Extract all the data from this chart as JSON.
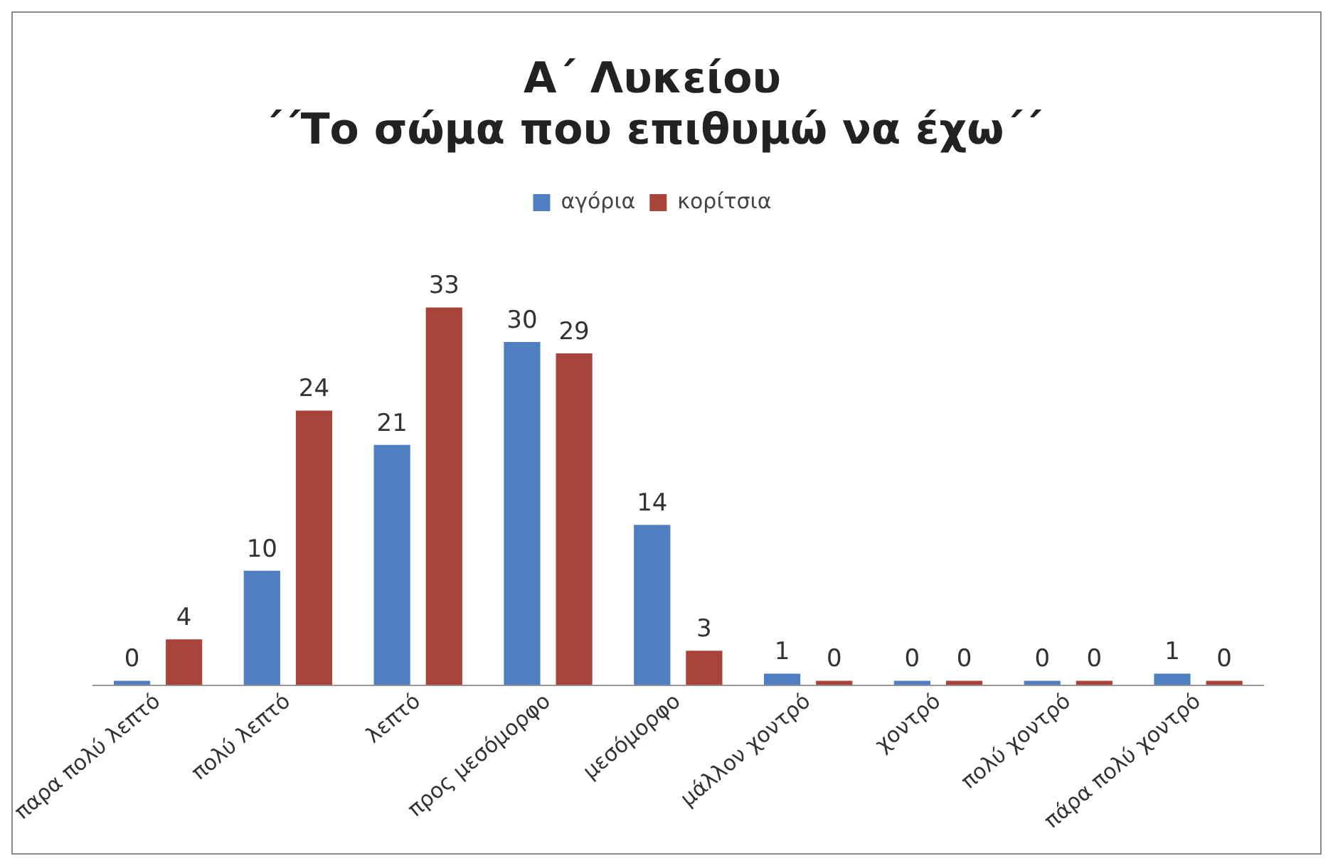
{
  "chart_data": {
    "type": "bar",
    "title": "Α΄ Λυκείου\n΄΄Το σώμα που επιθυμώ να έχω΄΄",
    "categories": [
      "παρα πολύ λεπτό",
      "πολύ λεπτό",
      "λεπτό",
      "προς μεσόμορφο",
      "μεσόμορφο",
      "μάλλον χοντρό",
      "χοντρό",
      "πολύ χοντρό",
      "πάρα πολύ χοντρό"
    ],
    "series": [
      {
        "name": "αγόρια",
        "color": "#4f7fc0",
        "values": [
          0,
          10,
          21,
          30,
          14,
          1,
          0,
          0,
          1
        ]
      },
      {
        "name": "κορίτσια",
        "color": "#a8443a",
        "values": [
          4,
          24,
          33,
          29,
          3,
          0,
          0,
          0,
          0
        ]
      }
    ],
    "data_labels": true,
    "legend": "top",
    "grid": false
  }
}
